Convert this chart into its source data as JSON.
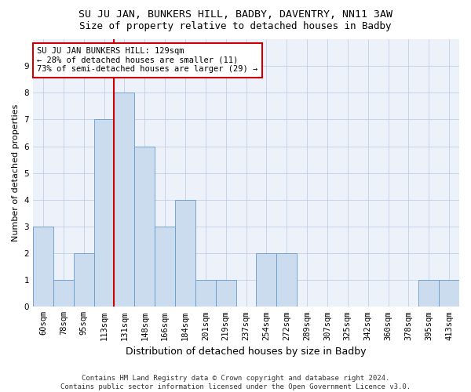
{
  "title": "SU JU JAN, BUNKERS HILL, BADBY, DAVENTRY, NN11 3AW",
  "subtitle": "Size of property relative to detached houses in Badby",
  "xlabel": "Distribution of detached houses by size in Badby",
  "ylabel": "Number of detached properties",
  "categories": [
    "60sqm",
    "78sqm",
    "95sqm",
    "113sqm",
    "131sqm",
    "148sqm",
    "166sqm",
    "184sqm",
    "201sqm",
    "219sqm",
    "237sqm",
    "254sqm",
    "272sqm",
    "289sqm",
    "307sqm",
    "325sqm",
    "342sqm",
    "360sqm",
    "378sqm",
    "395sqm",
    "413sqm"
  ],
  "values": [
    3,
    1,
    2,
    7,
    8,
    6,
    3,
    4,
    1,
    1,
    0,
    2,
    2,
    0,
    0,
    0,
    0,
    0,
    0,
    1,
    1
  ],
  "bar_color": "#ccdcef",
  "bar_edge_color": "#6699cc",
  "red_line_index": 4,
  "annotation_text": "SU JU JAN BUNKERS HILL: 129sqm\n← 28% of detached houses are smaller (11)\n73% of semi-detached houses are larger (29) →",
  "annotation_box_color": "#ffffff",
  "annotation_box_edge": "#cc0000",
  "red_line_color": "#cc0000",
  "ylim": [
    0,
    10
  ],
  "yticks": [
    0,
    1,
    2,
    3,
    4,
    5,
    6,
    7,
    8,
    9,
    10
  ],
  "grid_color": "#b8c8e0",
  "bg_color": "#edf2fa",
  "footer": "Contains HM Land Registry data © Crown copyright and database right 2024.\nContains public sector information licensed under the Open Government Licence v3.0.",
  "title_fontsize": 9.5,
  "subtitle_fontsize": 9,
  "xlabel_fontsize": 9,
  "ylabel_fontsize": 8,
  "tick_fontsize": 7.5,
  "annotation_fontsize": 7.5,
  "footer_fontsize": 6.5
}
